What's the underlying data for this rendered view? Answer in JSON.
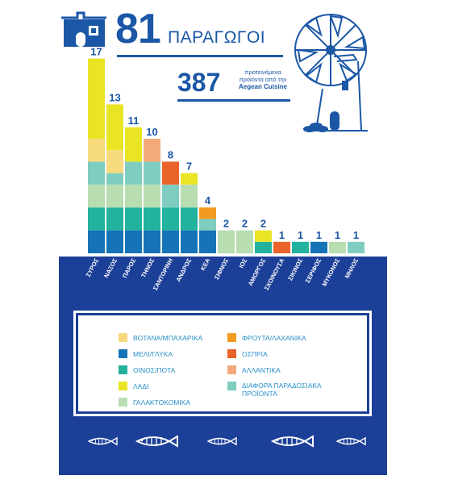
{
  "header": {
    "producers_count": "81",
    "producers_label": "ΠΑΡΑΓΩΓΟΙ",
    "products_count": "387",
    "products_line1": "προτεινόμενα",
    "products_line2": "προϊόντα από την",
    "products_line3": "Aegean Cuisine"
  },
  "colors": {
    "herbs": "#f8da7e",
    "honey": "#1673b8",
    "wine": "#22b29e",
    "oil": "#e9e424",
    "dairy": "#b7ddb1",
    "fruits": "#f39a23",
    "legumes": "#e9632a",
    "sausages": "#f3a97c",
    "traditional": "#7fcdc1",
    "panel": "#1c3f98",
    "text_blue": "#1b57a6"
  },
  "chart_data": {
    "type": "bar",
    "stacked": true,
    "categories": [
      "ΣΥΡΟΣ",
      "ΝΑΞΟΣ",
      "ΠΑΡΟΣ",
      "ΤΗΝΟΣ",
      "ΣΑΝΤΟΡΙΝΗ",
      "ΑΝΔΡΟΣ",
      "ΚΕΑ",
      "ΣΙΦΝΟΣ",
      "ΙΟΣ",
      "ΑΜΟΡΓΟΣ",
      "ΣΧΟΙΝΟΥΣΑ",
      "ΣΙΚΙΝΟΣ",
      "ΣΕΡΙΦΟΣ",
      "ΜΥΚΟΝΟΣ",
      "ΜΗΛΟΣ"
    ],
    "totals": [
      17,
      13,
      11,
      10,
      8,
      7,
      4,
      2,
      2,
      2,
      1,
      1,
      1,
      1,
      1
    ],
    "series": [
      {
        "name": "ΜΕΛΙ/ΓΛΥΚΑ",
        "key": "honey",
        "values": [
          2,
          2,
          2,
          2,
          2,
          2,
          2,
          0,
          0,
          0,
          0,
          0,
          1,
          0,
          0
        ]
      },
      {
        "name": "ΟΙΝΟΣ/ΠΟΤΑ",
        "key": "wine",
        "values": [
          2,
          2,
          2,
          2,
          2,
          2,
          0,
          0,
          0,
          1,
          0,
          1,
          0,
          0,
          0
        ]
      },
      {
        "name": "ΓΑΛΑΚΤΟΚΟΜΙΚΑ",
        "key": "dairy",
        "values": [
          2,
          2,
          2,
          2,
          0,
          2,
          0,
          2,
          2,
          0,
          0,
          0,
          0,
          1,
          0
        ]
      },
      {
        "name": "ΔΙΑΦΟΡΑ ΠΑΡΑΔΟΣΙΑΚΑ ΠΡΟΪΟΝΤΑ",
        "key": "traditional",
        "values": [
          2,
          1,
          2,
          2,
          2,
          0,
          1,
          0,
          0,
          0,
          0,
          0,
          0,
          0,
          1
        ]
      },
      {
        "name": "ΟΣΠΡΙΑ",
        "key": "legumes",
        "values": [
          0,
          0,
          0,
          0,
          2,
          0,
          0,
          0,
          0,
          0,
          1,
          0,
          0,
          0,
          0
        ]
      },
      {
        "name": "ΒΟΤΑΝΑ/ΜΠΑΧΑΡΙΚΑ",
        "key": "herbs",
        "values": [
          2,
          2,
          0,
          0,
          0,
          0,
          0,
          0,
          0,
          0,
          0,
          0,
          0,
          0,
          0
        ]
      },
      {
        "name": "ΦΡΟΥΤΑ/ΛΑΧΑΝΙΚΑ",
        "key": "fruits",
        "values": [
          0,
          0,
          0,
          0,
          0,
          0,
          1,
          0,
          0,
          0,
          0,
          0,
          0,
          0,
          0
        ]
      },
      {
        "name": "ΑΛΛΑΝΤΙΚΑ",
        "key": "sausages",
        "values": [
          0,
          0,
          0,
          2,
          0,
          0,
          0,
          0,
          0,
          0,
          0,
          0,
          0,
          0,
          0
        ]
      },
      {
        "name": "ΛΑΔΙ",
        "key": "oil",
        "values": [
          7,
          4,
          3,
          0,
          0,
          1,
          0,
          0,
          0,
          1,
          0,
          0,
          0,
          0,
          0
        ]
      }
    ],
    "legend": [
      {
        "label": "ΒΟΤΑΝΑ/ΜΠΑΧΑΡΙΚΑ",
        "key": "herbs"
      },
      {
        "label": "ΜΕΛΙ/ΓΛΥΚΑ",
        "key": "honey"
      },
      {
        "label": "ΟΙΝΟΣ/ΠΟΤΑ",
        "key": "wine"
      },
      {
        "label": "ΛΑΔΙ",
        "key": "oil"
      },
      {
        "label": "ΓΑΛΑΚΤΟΚΟΜΙΚΑ",
        "key": "dairy"
      },
      {
        "label": "ΦΡΟΥΤΑ/ΛΑΧΑΝΙΚΑ",
        "key": "fruits"
      },
      {
        "label": "ΟΣΠΡΙΑ",
        "key": "legumes"
      },
      {
        "label": "ΑΛΛΑΝΤΙΚΑ",
        "key": "sausages"
      },
      {
        "label": "ΔΙΑΦΟΡΑ ΠΑΡΑΔΟΣΙΑΚΑ",
        "label2": "ΠΡΟΪΟΝΤΑ",
        "key": "traditional"
      }
    ],
    "grid": false
  },
  "icons": [
    "house-icon",
    "windmill-icon",
    "fish-icon"
  ]
}
